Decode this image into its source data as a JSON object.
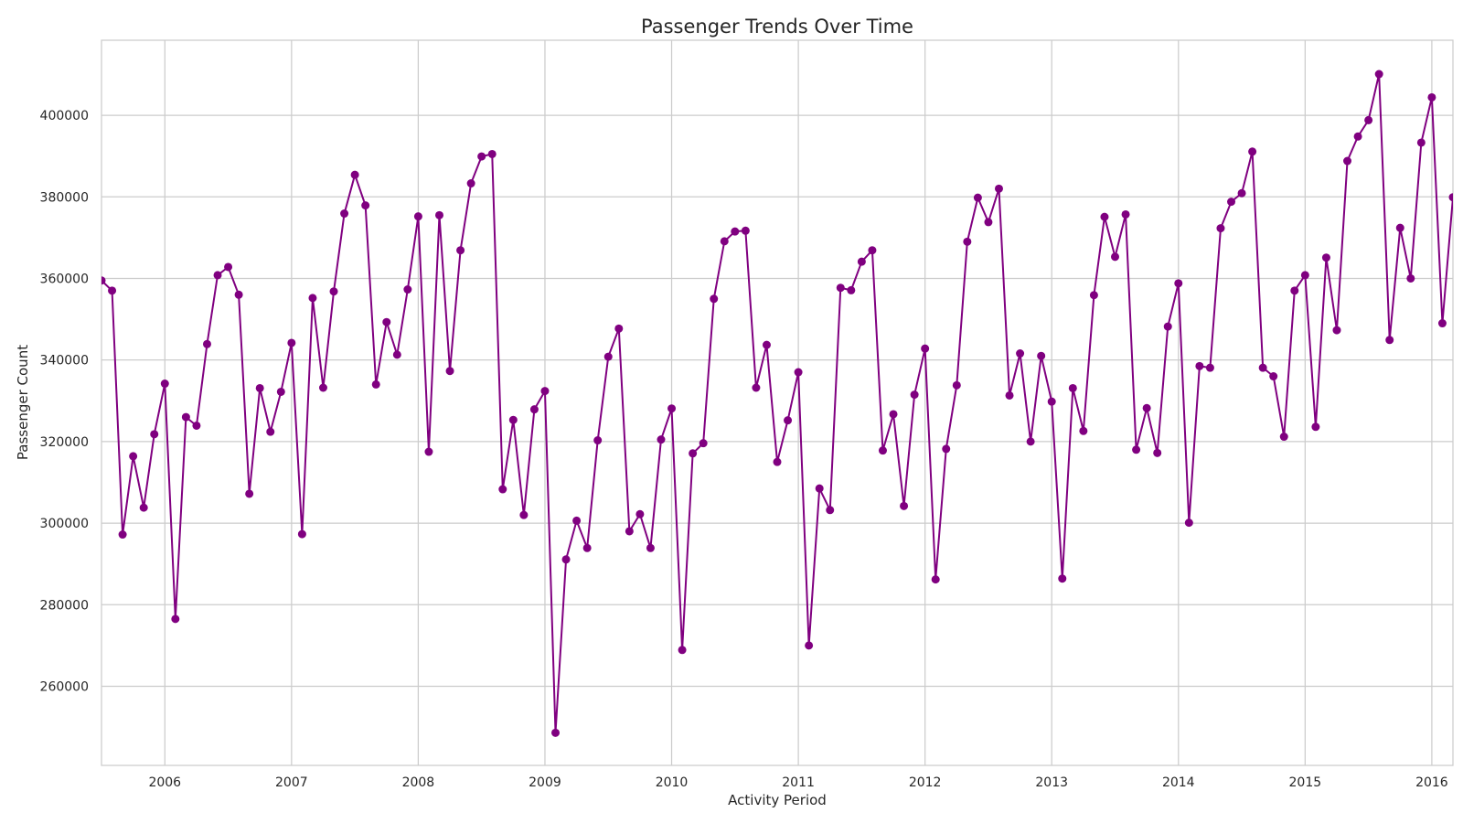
{
  "chart_data": {
    "type": "line",
    "title": "Passenger Trends Over Time",
    "xlabel": "Activity Period",
    "ylabel": "Passenger Count",
    "x_ticks": [
      "2006",
      "2007",
      "2008",
      "2009",
      "2010",
      "2011",
      "2012",
      "2013",
      "2014",
      "2015",
      "2016"
    ],
    "y_ticks": [
      "260000",
      "280000",
      "300000",
      "320000",
      "340000",
      "360000",
      "380000",
      "400000"
    ],
    "xlim": [
      "2005-07",
      "2016-03"
    ],
    "ylim": [
      240600,
      418400
    ],
    "grid": true,
    "line_color": "#800080",
    "marker": "circle",
    "series": [
      {
        "x": [
          "2005-07",
          "2005-08",
          "2005-09",
          "2005-10",
          "2005-11",
          "2005-12",
          "2006-01",
          "2006-02",
          "2006-03",
          "2006-04",
          "2006-05",
          "2006-06",
          "2006-07",
          "2006-08",
          "2006-09",
          "2006-10",
          "2006-11",
          "2006-12",
          "2007-01",
          "2007-02",
          "2007-03",
          "2007-04",
          "2007-05",
          "2007-06",
          "2007-07",
          "2007-08",
          "2007-09",
          "2007-10",
          "2007-11",
          "2007-12",
          "2008-01",
          "2008-02",
          "2008-03",
          "2008-04",
          "2008-05",
          "2008-06",
          "2008-07",
          "2008-08",
          "2008-09",
          "2008-10",
          "2008-11",
          "2008-12",
          "2009-01",
          "2009-02",
          "2009-03",
          "2009-04",
          "2009-05",
          "2009-06",
          "2009-07",
          "2009-08",
          "2009-09",
          "2009-10",
          "2009-11",
          "2009-12",
          "2010-01",
          "2010-02",
          "2010-03",
          "2010-04",
          "2010-05",
          "2010-06",
          "2010-07",
          "2010-08",
          "2010-09",
          "2010-10",
          "2010-11",
          "2010-12",
          "2011-01",
          "2011-02",
          "2011-03",
          "2011-04",
          "2011-05",
          "2011-06",
          "2011-07",
          "2011-08",
          "2011-09",
          "2011-10",
          "2011-11",
          "2011-12",
          "2012-01",
          "2012-02",
          "2012-03",
          "2012-04",
          "2012-05",
          "2012-06",
          "2012-07",
          "2012-08",
          "2012-09",
          "2012-10",
          "2012-11",
          "2012-12",
          "2013-01",
          "2013-02",
          "2013-03",
          "2013-04",
          "2013-05",
          "2013-06",
          "2013-07",
          "2013-08",
          "2013-09",
          "2013-10",
          "2013-11",
          "2013-12",
          "2014-01",
          "2014-02",
          "2014-03",
          "2014-04",
          "2014-05",
          "2014-06",
          "2014-07",
          "2014-08",
          "2014-09",
          "2014-10",
          "2014-11",
          "2014-12",
          "2015-01",
          "2015-02",
          "2015-03",
          "2015-04",
          "2015-05",
          "2015-06",
          "2015-07",
          "2015-08",
          "2015-09",
          "2015-10",
          "2015-11",
          "2015-12",
          "2016-01",
          "2016-02",
          "2016-03"
        ],
        "values": [
          359500,
          357000,
          297200,
          316400,
          303800,
          321800,
          334200,
          276500,
          326000,
          323900,
          343900,
          360800,
          362800,
          356000,
          307200,
          333100,
          322400,
          332200,
          344200,
          297300,
          355200,
          333200,
          356800,
          375900,
          385400,
          377900,
          334000,
          349300,
          341300,
          357300,
          375200,
          317500,
          375500,
          337300,
          366900,
          383300,
          389900,
          390500,
          308300,
          325300,
          302000,
          327900,
          332400,
          248600,
          291100,
          300600,
          293900,
          320300,
          340800,
          347700,
          298000,
          302200,
          293900,
          320500,
          328100,
          268900,
          317100,
          319600,
          355000,
          369100,
          371500,
          371700,
          333200,
          343700,
          315000,
          325200,
          337000,
          270000,
          308500,
          303200,
          357700,
          357100,
          364100,
          366900,
          317800,
          326700,
          304200,
          331500,
          342800,
          286200,
          318200,
          333800,
          369000,
          379800,
          373800,
          382000,
          331300,
          341600,
          320000,
          341000,
          329800,
          286400,
          333100,
          322600,
          355900,
          375100,
          365300,
          375700,
          318000,
          328200,
          317200,
          348200,
          358800,
          300100,
          338500,
          338100,
          372300,
          378800,
          380900,
          391100,
          338100,
          336000,
          321200,
          357000,
          360800,
          323600,
          365100,
          347300,
          388800,
          394800,
          398800,
          410100,
          344900,
          372400,
          360000,
          393300,
          404400,
          349000,
          379900
        ]
      }
    ]
  }
}
